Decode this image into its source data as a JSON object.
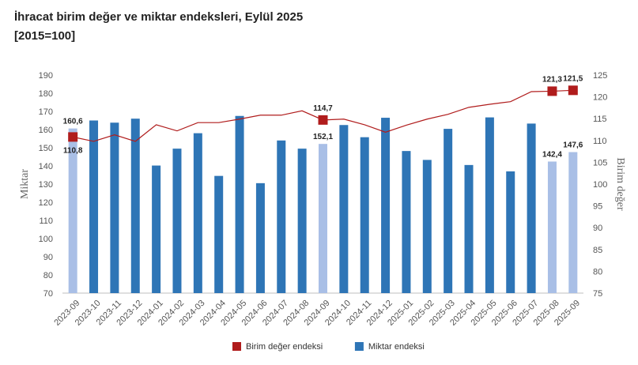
{
  "title_line1": "İhracat birim değer ve miktar endeksleri, Eylül 2025",
  "title_line2": "[2015=100]",
  "colors": {
    "bar_dark": "#2e75b6",
    "bar_light": "#a9bfe6",
    "line": "#b01c1c",
    "marker": "#b01c1c",
    "axis": "#bfbfbf"
  },
  "chart_data": {
    "type": "bar+line",
    "categories": [
      "2023-09",
      "2023-10",
      "2023-11",
      "2023-12",
      "2024-01",
      "2024-02",
      "2024-03",
      "2024-04",
      "2024-05",
      "2024-06",
      "2024-07",
      "2024-08",
      "2024-09",
      "2024-10",
      "2024-11",
      "2024-12",
      "2025-01",
      "2025-02",
      "2025-03",
      "2025-04",
      "2025-05",
      "2025-06",
      "2025-07",
      "2025-08",
      "2025-09"
    ],
    "series": [
      {
        "name": "Miktar endeksi",
        "axis": "left",
        "type": "bar",
        "values": [
          160.6,
          165.0,
          163.8,
          166.0,
          140.2,
          149.5,
          158.0,
          134.5,
          167.5,
          130.5,
          154.0,
          149.5,
          152.1,
          162.5,
          155.8,
          166.5,
          148.2,
          143.3,
          160.4,
          140.5,
          166.7,
          137.0,
          163.3,
          142.4,
          147.6
        ],
        "highlighted_indices": [
          0,
          12,
          23,
          24
        ]
      },
      {
        "name": "Birim değer endeksi",
        "axis": "right",
        "type": "line",
        "values": [
          110.8,
          109.8,
          111.3,
          109.8,
          113.6,
          112.2,
          114.1,
          114.1,
          114.9,
          115.8,
          115.8,
          116.8,
          114.7,
          114.9,
          113.6,
          111.9,
          113.5,
          114.9,
          116.0,
          117.6,
          118.3,
          118.9,
          121.2,
          121.3,
          121.5
        ],
        "marker_indices": [
          0,
          12,
          23,
          24
        ]
      }
    ],
    "data_labels": {
      "bar": [
        {
          "index": 0,
          "text": "160,6"
        },
        {
          "index": 12,
          "text": "152,1"
        },
        {
          "index": 23,
          "text": "142,4"
        },
        {
          "index": 24,
          "text": "147,6"
        }
      ],
      "line": [
        {
          "index": 0,
          "text": "110,8"
        },
        {
          "index": 12,
          "text": "114,7"
        },
        {
          "index": 23,
          "text": "121,3"
        },
        {
          "index": 24,
          "text": "121,5"
        }
      ]
    },
    "ylabel_left": "Miktar",
    "ylabel_right": "Birim değer",
    "ylim_left": [
      70,
      190
    ],
    "yticks_left": [
      70,
      80,
      90,
      100,
      110,
      120,
      130,
      140,
      150,
      160,
      170,
      180,
      190
    ],
    "ylim_right": [
      75,
      125
    ],
    "yticks_right": [
      75,
      80,
      85,
      90,
      95,
      100,
      105,
      110,
      115,
      120,
      125
    ],
    "grid": false,
    "legend": {
      "placement": "bottom",
      "items": [
        {
          "label": "Birim değer endeksi",
          "color": "#b01c1c"
        },
        {
          "label": "Miktar endeksi",
          "color": "#2e75b6"
        }
      ]
    }
  }
}
